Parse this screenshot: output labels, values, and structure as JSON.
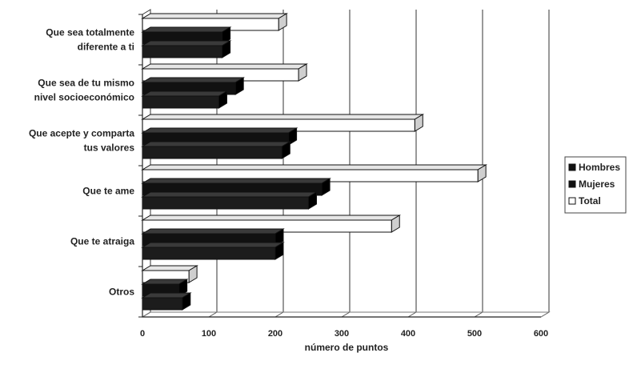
{
  "chart_data": {
    "type": "bar",
    "orientation": "horizontal",
    "three_d": true,
    "categories": [
      [
        "Que sea totalmente",
        "diferente a ti"
      ],
      [
        "Que sea de tu mismo",
        "nivel socioeconómico"
      ],
      [
        "Que acepte y comparta",
        "tus valores"
      ],
      [
        "Que te ame"
      ],
      [
        "Que te atraiga"
      ],
      [
        "Otros"
      ]
    ],
    "series": [
      {
        "name": "Hombres",
        "values": [
          120,
          140,
          220,
          270,
          200,
          55
        ]
      },
      {
        "name": "Mujeres",
        "values": [
          120,
          115,
          210,
          250,
          200,
          60
        ]
      },
      {
        "name": "Total",
        "values": [
          205,
          235,
          410,
          505,
          375,
          70
        ]
      }
    ],
    "x_ticks": [
      "0",
      "100",
      "200",
      "300",
      "400",
      "500",
      "600"
    ],
    "xlim": [
      0,
      600
    ],
    "xlabel": "número de puntos",
    "grid": "vertical",
    "legend_position": "right",
    "colors": {
      "Hombres": "#111111",
      "Mujeres": "#1a1a1a",
      "Total": "#ffffff"
    }
  }
}
